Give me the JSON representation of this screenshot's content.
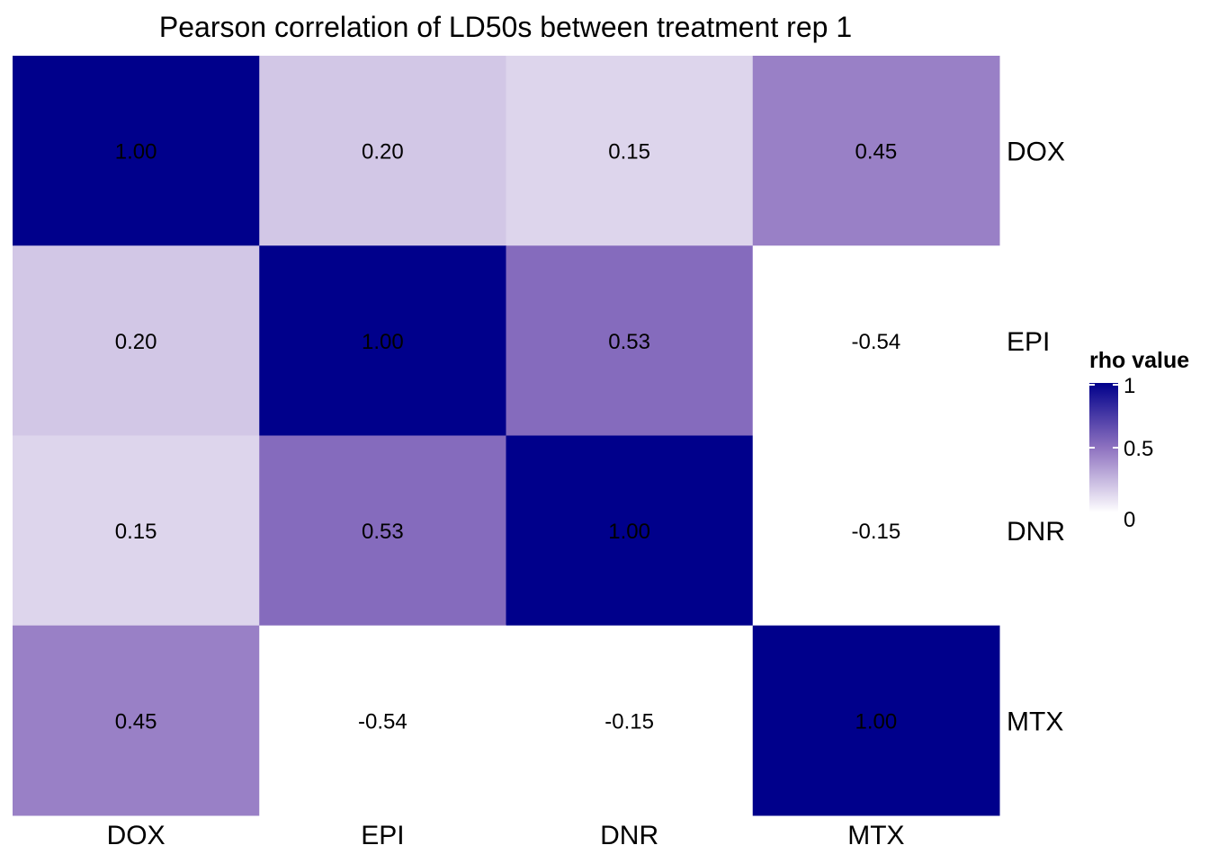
{
  "chart_data": {
    "type": "heatmap",
    "title": "Pearson correlation of LD50s between treatment rep 1",
    "x_categories": [
      "DOX",
      "EPI",
      "DNR",
      "MTX"
    ],
    "y_categories": [
      "DOX",
      "EPI",
      "DNR",
      "MTX"
    ],
    "values": [
      [
        1.0,
        0.2,
        0.15,
        0.45
      ],
      [
        0.2,
        1.0,
        0.53,
        -0.54
      ],
      [
        0.15,
        0.53,
        1.0,
        -0.15
      ],
      [
        0.45,
        -0.54,
        -0.15,
        1.0
      ]
    ],
    "value_labels": [
      [
        "1.00",
        "0.20",
        "0.15",
        "0.45"
      ],
      [
        "0.20",
        "1.00",
        "0.53",
        "-0.54"
      ],
      [
        "0.15",
        "0.53",
        "1.00",
        "-0.15"
      ],
      [
        "0.45",
        "-0.54",
        "-0.15",
        "1.00"
      ]
    ],
    "color_scale": {
      "low_color": "#ffffff",
      "high_color": "#00008b",
      "mid_color": "#8e72c0",
      "limits": [
        0,
        1
      ],
      "below_limit_color": "#ffffff"
    },
    "legend": {
      "title": "rho value",
      "ticks": [
        1,
        0.5,
        0
      ],
      "tick_labels": [
        "1",
        "0.5",
        "0"
      ],
      "placement": "right"
    },
    "y_axis_position": "right",
    "grid": false
  }
}
